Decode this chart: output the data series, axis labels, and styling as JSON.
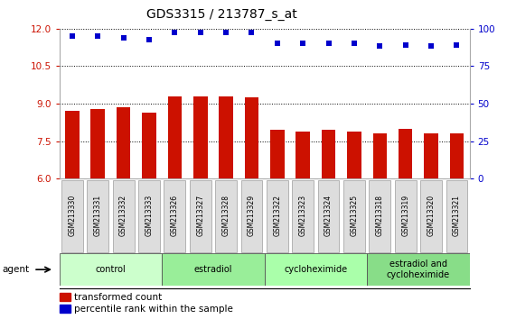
{
  "title": "GDS3315 / 213787_s_at",
  "samples": [
    "GSM213330",
    "GSM213331",
    "GSM213332",
    "GSM213333",
    "GSM213326",
    "GSM213327",
    "GSM213328",
    "GSM213329",
    "GSM213322",
    "GSM213323",
    "GSM213324",
    "GSM213325",
    "GSM213318",
    "GSM213319",
    "GSM213320",
    "GSM213321"
  ],
  "bar_values": [
    8.7,
    8.8,
    8.85,
    8.65,
    9.3,
    9.3,
    9.3,
    9.25,
    7.95,
    7.9,
    7.95,
    7.9,
    7.8,
    8.0,
    7.8,
    7.8
  ],
  "dot_values": [
    11.7,
    11.7,
    11.65,
    11.55,
    11.85,
    11.85,
    11.85,
    11.85,
    11.4,
    11.4,
    11.4,
    11.4,
    11.3,
    11.35,
    11.3,
    11.35
  ],
  "bar_color": "#cc1100",
  "dot_color": "#0000cc",
  "ylim_left": [
    6,
    12
  ],
  "ylim_right": [
    0,
    100
  ],
  "yticks_left": [
    6,
    7.5,
    9,
    10.5,
    12
  ],
  "yticks_right": [
    0,
    25,
    50,
    75,
    100
  ],
  "groups": [
    {
      "label": "control",
      "start": 0,
      "end": 4,
      "color": "#ccffcc"
    },
    {
      "label": "estradiol",
      "start": 4,
      "end": 8,
      "color": "#99ee99"
    },
    {
      "label": "cycloheximide",
      "start": 8,
      "end": 12,
      "color": "#aaffaa"
    },
    {
      "label": "estradiol and\ncycloheximide",
      "start": 12,
      "end": 16,
      "color": "#88dd88"
    }
  ],
  "agent_label": "agent",
  "legend_bar_label": "transformed count",
  "legend_dot_label": "percentile rank within the sample",
  "background_color": "#ffffff",
  "plot_bg_color": "#ffffff",
  "tick_label_color_left": "#cc1100",
  "tick_label_color_right": "#0000cc",
  "grid_color": "#000000",
  "bar_bottom": 6.0
}
